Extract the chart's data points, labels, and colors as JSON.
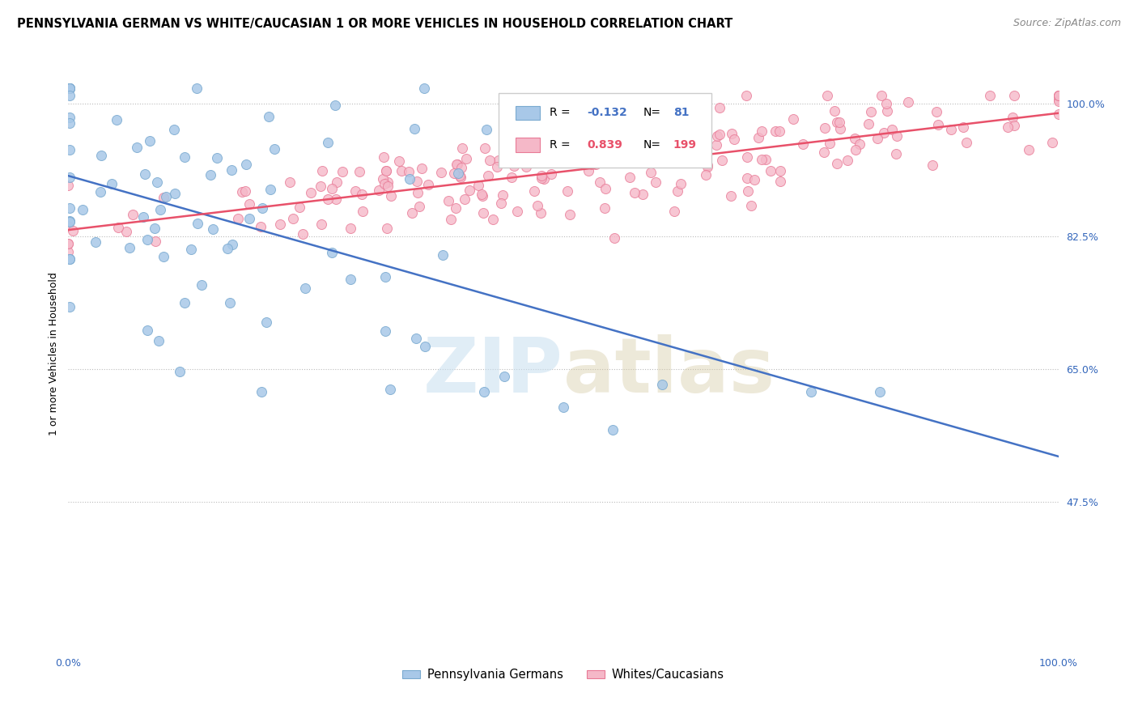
{
  "title": "PENNSYLVANIA GERMAN VS WHITE/CAUCASIAN 1 OR MORE VEHICLES IN HOUSEHOLD CORRELATION CHART",
  "source": "Source: ZipAtlas.com",
  "ylabel": "1 or more Vehicles in Household",
  "ytick_labels": [
    "100.0%",
    "82.5%",
    "65.0%",
    "47.5%"
  ],
  "ytick_values": [
    1.0,
    0.825,
    0.65,
    0.475
  ],
  "xlim": [
    0.0,
    1.0
  ],
  "ylim": [
    0.28,
    1.06
  ],
  "blue_color": "#a8c8e8",
  "blue_edge_color": "#7aaad0",
  "pink_color": "#f5b8c8",
  "pink_edge_color": "#e87a96",
  "blue_line_color": "#4472c4",
  "pink_line_color": "#e8516a",
  "legend_blue_label": "Pennsylvania Germans",
  "legend_pink_label": "Whites/Caucasians",
  "R_blue": "-0.132",
  "N_blue": "81",
  "R_pink": "0.839",
  "N_pink": "199",
  "watermark_zip": "ZIP",
  "watermark_atlas": "atlas",
  "blue_R": -0.132,
  "pink_R": 0.839,
  "blue_N": 81,
  "pink_N": 199,
  "title_fontsize": 10.5,
  "source_fontsize": 9,
  "label_fontsize": 9,
  "tick_fontsize": 9,
  "marker_size": 75
}
